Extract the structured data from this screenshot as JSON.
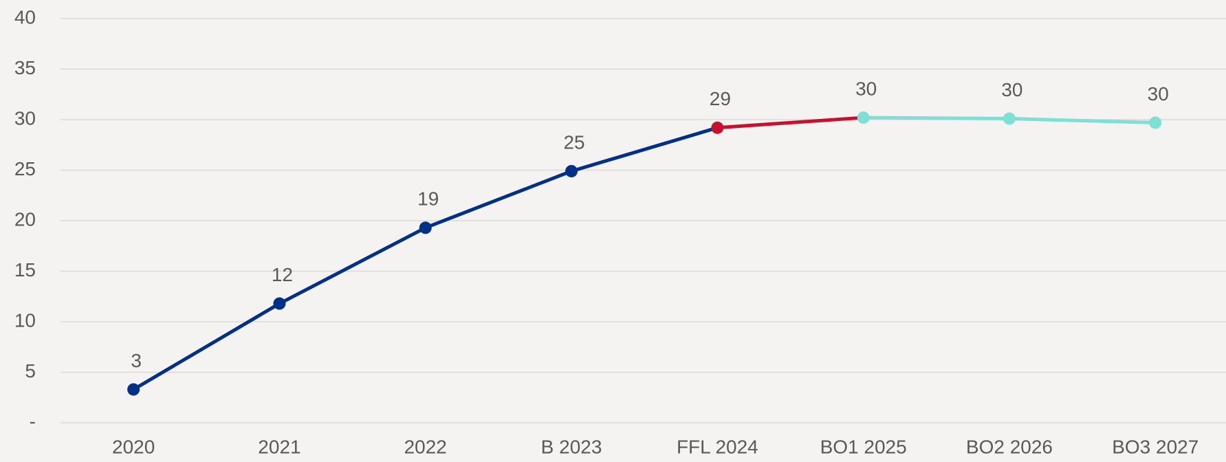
{
  "chart_data": {
    "type": "line",
    "categories": [
      "2020",
      "2021",
      "2022",
      "B 2023",
      "FFL 2024",
      "BO1 2025",
      "BO2 2026",
      "BO3 2027"
    ],
    "values": [
      3.3,
      11.8,
      19.3,
      24.9,
      29.2,
      30.2,
      30.1,
      29.7
    ],
    "value_labels": [
      "3",
      "12",
      "19",
      "25",
      "29",
      "30",
      "30",
      "30"
    ],
    "point_colors": [
      "#003087",
      "#003087",
      "#003087",
      "#003087",
      "#c8102e",
      "#7fdfd4",
      "#7fdfd4",
      "#7fdfd4"
    ],
    "ylim": [
      0,
      40
    ],
    "yticks": [
      {
        "value": 0,
        "label": "-"
      },
      5,
      10,
      15,
      20,
      25,
      30,
      35,
      40
    ],
    "grid": true
  }
}
